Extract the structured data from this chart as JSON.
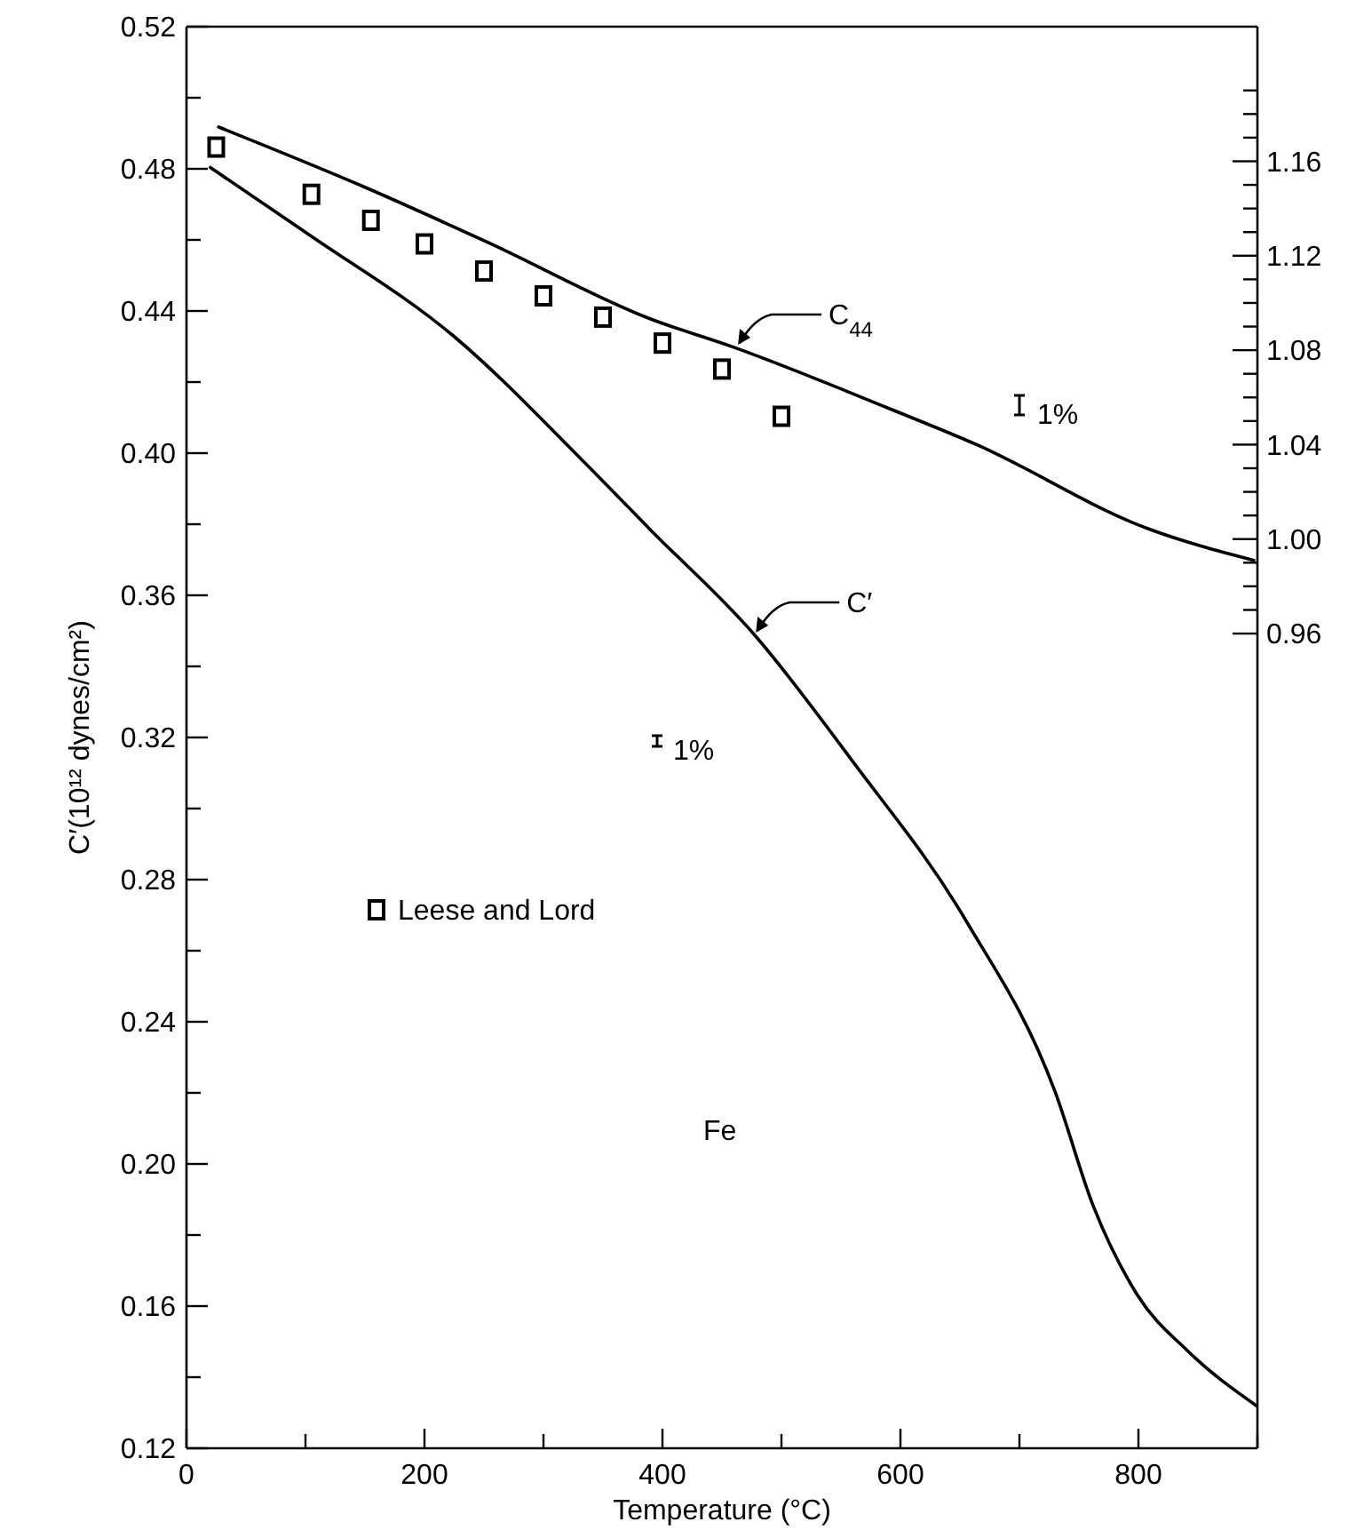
{
  "chart_data": {
    "type": "line",
    "xlabel": "Temperature (°C)",
    "ylabel": "C′(10¹² dynes/cm²)",
    "xlim": [
      0,
      900
    ],
    "xticks": [
      0,
      {
        "value": 100,
        "label": null
      },
      200,
      {
        "value": 300,
        "label": null
      },
      400,
      {
        "value": 500,
        "label": null
      },
      600,
      {
        "value": 700,
        "label": null
      },
      800,
      {
        "value": 900,
        "label": null
      }
    ],
    "ylim": [
      0.12,
      0.52
    ],
    "yticks": [
      {
        "value": 0.12,
        "label": "0.12"
      },
      {
        "value": 0.14,
        "label": null
      },
      {
        "value": 0.16,
        "label": "0.16"
      },
      {
        "value": 0.18,
        "label": null
      },
      {
        "value": 0.2,
        "label": "0.20"
      },
      {
        "value": 0.22,
        "label": null
      },
      {
        "value": 0.24,
        "label": "0.24"
      },
      {
        "value": 0.26,
        "label": null
      },
      {
        "value": 0.28,
        "label": "0.28"
      },
      {
        "value": 0.3,
        "label": null
      },
      {
        "value": 0.32,
        "label": "0.32"
      },
      {
        "value": 0.34,
        "label": null
      },
      {
        "value": 0.36,
        "label": "0.36"
      },
      {
        "value": 0.38,
        "label": null
      },
      {
        "value": 0.4,
        "label": "0.40"
      },
      {
        "value": 0.42,
        "label": null
      },
      {
        "value": 0.44,
        "label": "0.44"
      },
      {
        "value": 0.46,
        "label": null
      },
      {
        "value": 0.48,
        "label": "0.48"
      },
      {
        "value": 0.5,
        "label": null
      },
      {
        "value": 0.52,
        "label": "0.52"
      }
    ],
    "y2lim": [
      0.615,
      1.217
    ],
    "y2ticks": [
      {
        "value": 0.96,
        "label": "0.96"
      },
      {
        "value": 0.97,
        "label": null
      },
      {
        "value": 0.98,
        "label": null
      },
      {
        "value": 0.99,
        "label": null
      },
      {
        "value": 1.0,
        "label": "1.00"
      },
      {
        "value": 1.01,
        "label": null
      },
      {
        "value": 1.02,
        "label": null
      },
      {
        "value": 1.03,
        "label": null
      },
      {
        "value": 1.04,
        "label": "1.04"
      },
      {
        "value": 1.05,
        "label": null
      },
      {
        "value": 1.06,
        "label": null
      },
      {
        "value": 1.07,
        "label": null
      },
      {
        "value": 1.08,
        "label": "1.08"
      },
      {
        "value": 1.09,
        "label": null
      },
      {
        "value": 1.1,
        "label": null
      },
      {
        "value": 1.11,
        "label": null
      },
      {
        "value": 1.12,
        "label": "1.12"
      },
      {
        "value": 1.13,
        "label": null
      },
      {
        "value": 1.14,
        "label": null
      },
      {
        "value": 1.15,
        "label": null
      },
      {
        "value": 1.16,
        "label": "1.16"
      },
      {
        "value": 1.17,
        "label": null
      },
      {
        "value": 1.18,
        "label": null
      },
      {
        "value": 1.19,
        "label": null
      }
    ],
    "grid": false,
    "legend": "left",
    "line_style": "solid",
    "series": [
      {
        "type": "line",
        "color": "#000000",
        "x": [
          20,
          102,
          226,
          335,
          390,
          477,
          560,
          655,
          730,
          762,
          799,
          842,
          899
        ],
        "values": [
          0.4804,
          0.4617,
          0.4325,
          0.3972,
          0.3784,
          0.349,
          0.3132,
          0.2685,
          0.2203,
          0.1882,
          0.1632,
          0.1472,
          0.132
        ]
      },
      {
        "type": "line",
        "axis": "y2",
        "color": "#000000",
        "x": [
          27,
          150,
          253,
          390,
          460,
          589,
          664,
          808,
          897
        ],
        "values": [
          1.1745,
          1.149,
          1.1257,
          1.0932,
          1.0812,
          1.0556,
          1.04,
          1.0044,
          0.991
        ]
      },
      {
        "type": "scatter",
        "axis": "y2",
        "name": "Leese and Lord",
        "color": "#000000",
        "marker": "square",
        "x": [
          25,
          105,
          155,
          200,
          250,
          300,
          350,
          400,
          450,
          500
        ],
        "values": [
          1.166,
          1.146,
          1.135,
          1.125,
          1.1135,
          1.103,
          1.094,
          1.083,
          1.072,
          1.052
        ]
      }
    ],
    "annotations": [
      {
        "text": "C$_{44}$",
        "x": 462,
        "y": 0.43
      },
      {
        "text": "C′",
        "x": 477,
        "y": 0.349
      },
      "1%",
      "1%",
      "Fe"
    ]
  }
}
